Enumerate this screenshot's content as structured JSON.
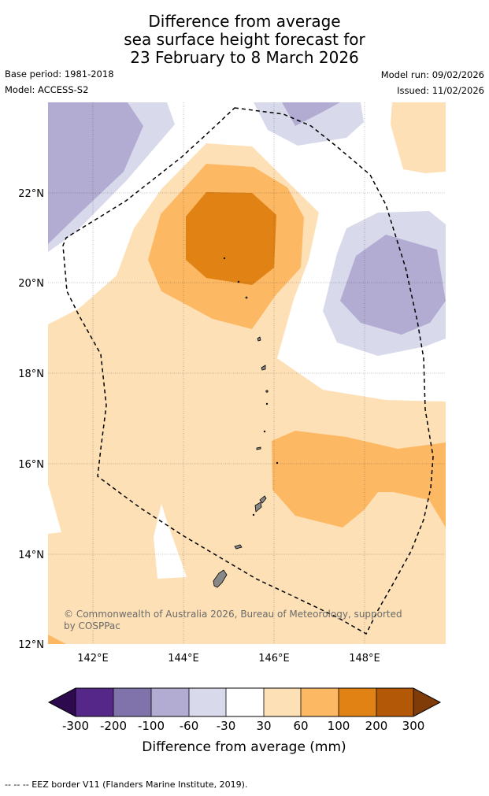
{
  "title": {
    "line1": "Difference from average",
    "line2": "sea surface height forecast for",
    "line3": "23 February to 8 March 2026"
  },
  "meta": {
    "base_period": "Base period: 1981-2018",
    "model": "Model: ACCESS-S2",
    "model_run": "Model run: 09/02/2026",
    "issued": "Issued: 11/02/2026"
  },
  "axes": {
    "lat_labels": [
      "22°N",
      "20°N",
      "18°N",
      "16°N",
      "14°N",
      "12°N"
    ],
    "lon_labels": [
      "142°E",
      "144°E",
      "146°E",
      "148°E"
    ]
  },
  "credit": {
    "line1": "© Commonwealth of Australia 2026, Bureau of Meteorology, supported",
    "line2": "by COSPPac"
  },
  "colorbar": {
    "title": "Difference from average (mm)",
    "tick_labels": [
      "-300",
      "-200",
      "-100",
      "-60",
      "-30",
      "30",
      "60",
      "100",
      "200",
      "300"
    ],
    "colors": {
      "lt300": "#2d0a4e",
      "m300_m200": "#542788",
      "m200_m100": "#8073ac",
      "m100_m60": "#b2abd2",
      "m60_m30": "#d8daeb",
      "m30_30": "#ffffff",
      "p30_60": "#fee0b6",
      "p60_100": "#fdb863",
      "p100_200": "#e08214",
      "p200_300": "#b35806",
      "gt300": "#7f3b08"
    }
  },
  "footer": {
    "legend_text": "--  --  -- EEZ border V11 (Flanders Marine Institute, 2019)."
  }
}
